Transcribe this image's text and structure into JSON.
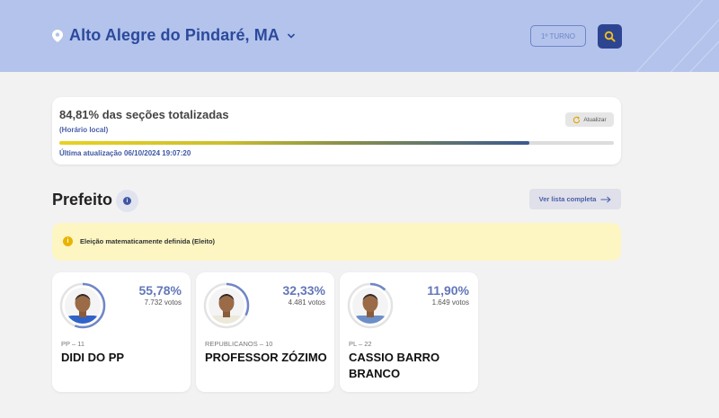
{
  "header": {
    "city": "Alto Alegre do Pindaré, MA",
    "turno_label": "1º TURNO",
    "icons": {
      "location": "map-pin-icon",
      "dropdown": "chevron-down-icon",
      "search": "search-icon"
    }
  },
  "status": {
    "percent_text": "84,81% das seções totalizadas",
    "percent_value": 84.81,
    "local_time_label": "(Horário local)",
    "refresh_label": "Atualizar",
    "last_update": "Última atualização 06/10/2024 19:07:20"
  },
  "section": {
    "title": "Prefeito",
    "see_full_list": "Ver lista completa"
  },
  "notice": {
    "text": "Eleição matematicamente definida (Eleito)"
  },
  "candidates": [
    {
      "percent": "55,78%",
      "percent_value": 55.78,
      "votes": "7.732 votos",
      "party": "PP – 11",
      "name": "DIDI DO PP",
      "ring_color": "#6f86c7",
      "shirt_color": "#2f63c9"
    },
    {
      "percent": "32,33%",
      "percent_value": 32.33,
      "votes": "4.481 votos",
      "party": "REPUBLICANOS – 10",
      "name": "PROFESSOR ZÓZIMO",
      "ring_color": "#6f86c7",
      "shirt_color": "#ece8da"
    },
    {
      "percent": "11,90%",
      "percent_value": 11.9,
      "votes": "1.649 votos",
      "party": "PL – 22",
      "name": "CASSIO BARRO BRANCO",
      "ring_color": "#6f86c7",
      "shirt_color": "#6d8fc8"
    }
  ],
  "colors": {
    "header_bg": "#b3c3ec",
    "accent": "#2d4591",
    "notice_bg": "#fdf6c2"
  }
}
